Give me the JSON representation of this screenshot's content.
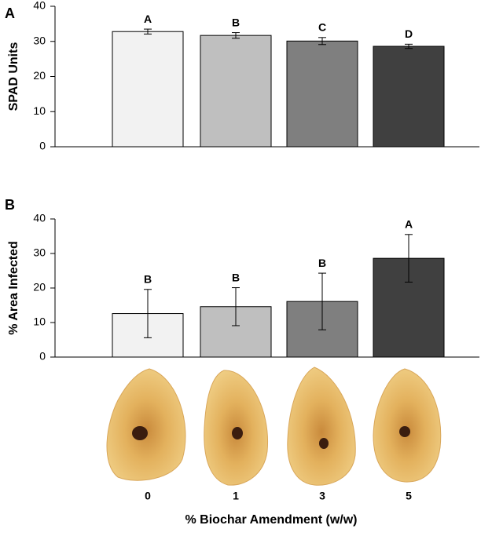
{
  "chart_data": [
    {
      "type": "bar",
      "label": "A",
      "ylabel": "SPAD Units",
      "values": [
        32.8,
        31.7,
        30.1,
        28.6
      ],
      "errors": [
        0.7,
        0.8,
        1.0,
        0.6
      ],
      "annotations": [
        "A",
        "B",
        "C",
        "D"
      ],
      "colors": [
        "#f2f2f2",
        "#bfbfbf",
        "#7f7f7f",
        "#404040"
      ],
      "ylim": [
        0,
        40
      ],
      "yticks": [
        0,
        10,
        20,
        30,
        40
      ]
    },
    {
      "type": "bar",
      "label": "B",
      "ylabel": "% Area Infected",
      "categories": [
        "0",
        "1",
        "3",
        "5"
      ],
      "values": [
        12.6,
        14.6,
        16.1,
        28.6
      ],
      "errors": [
        7.0,
        5.5,
        8.2,
        6.9
      ],
      "annotations": [
        "B",
        "B",
        "B",
        "A"
      ],
      "colors": [
        "#f2f2f2",
        "#bfbfbf",
        "#7f7f7f",
        "#404040"
      ],
      "ylim": [
        0,
        40
      ],
      "yticks": [
        0,
        10,
        20,
        30,
        40
      ],
      "xlabel": "% Biochar Amendment (w/w)"
    }
  ]
}
